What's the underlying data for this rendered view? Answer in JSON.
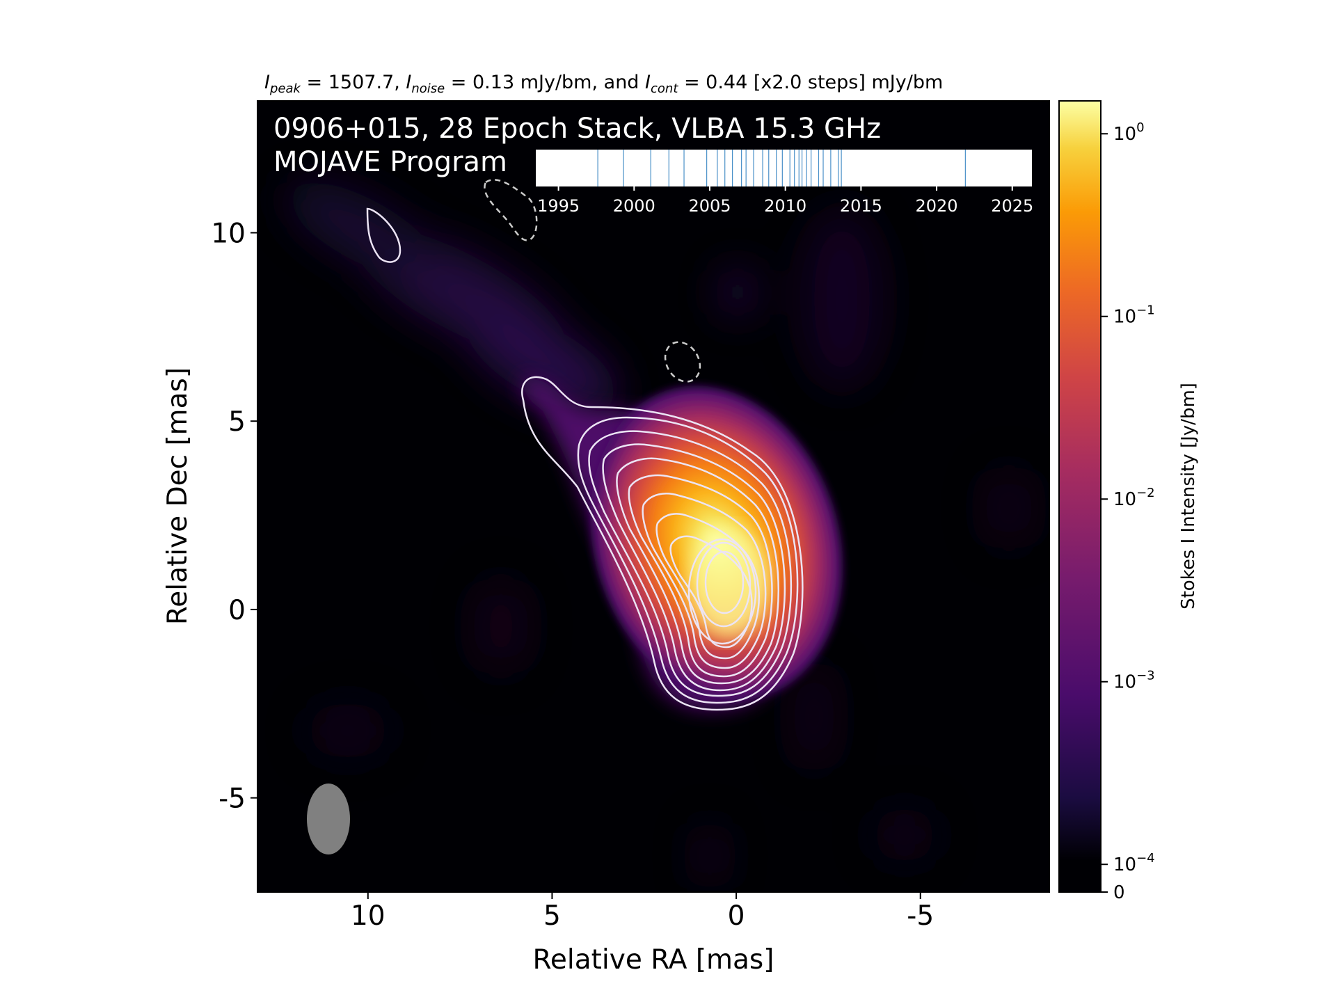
{
  "chart_data": {
    "type": "heatmap",
    "title_parts": {
      "peak_label": "I",
      "peak_sub": "peak",
      "peak_value": " = 1507.7, ",
      "noise_label": "I",
      "noise_sub": "noise",
      "noise_value": " = 0.13 mJy/bm, and ",
      "cont_label": "I",
      "cont_sub": "cont",
      "cont_value": " = 0.44 [x2.0 steps] mJy/bm"
    },
    "inset_text": {
      "line1": "0906+015, 28 Epoch Stack, VLBA 15.3 GHz",
      "line2": "MOJAVE Program"
    },
    "xlabel": "Relative RA [mas]",
    "ylabel": "Relative Dec [mas]",
    "xlim": [
      13.0,
      -8.5
    ],
    "ylim": [
      -7.5,
      13.5
    ],
    "x_ticks": [
      10,
      5,
      0,
      -5
    ],
    "x_tick_labels": [
      "10",
      "5",
      "0",
      "-5"
    ],
    "y_ticks": [
      10,
      5,
      0,
      -5
    ],
    "y_tick_labels": [
      "10",
      "5",
      "0",
      "-5"
    ],
    "colormap": "inferno",
    "colorbar": {
      "label": "Stokes I Intensity [Jy/bm]",
      "scale": "symlog",
      "ticks": [
        1,
        0.1,
        0.01,
        0.001,
        0.0001,
        0
      ],
      "tick_labels": [
        {
          "base": "10",
          "exp": "0"
        },
        {
          "base": "10",
          "exp": "−1"
        },
        {
          "base": "10",
          "exp": "−2"
        },
        {
          "base": "10",
          "exp": "−3"
        },
        {
          "base": "10",
          "exp": "−4"
        },
        {
          "base": "0",
          "exp": ""
        }
      ]
    },
    "peak_position": [
      0,
      0
    ],
    "contour_color": "#e8e0f0",
    "beam": {
      "x": 11.0,
      "y": -6.5,
      "major_mas": 2.0,
      "minor_mas": 1.2,
      "pa_deg": 0,
      "color": "#808080"
    },
    "negative_contours": [
      {
        "x": 6.0,
        "y": 10.3
      },
      {
        "x": 1.4,
        "y": 6.2
      }
    ],
    "epoch_timeline": {
      "xlim": [
        1993.5,
        2026.3
      ],
      "ticks": [
        1995,
        2000,
        2005,
        2010,
        2015,
        2020,
        2025
      ],
      "tick_labels": [
        "1995",
        "2000",
        "2005",
        "2010",
        "2015",
        "2020",
        "2025"
      ],
      "epochs": [
        1997.6,
        1999.3,
        2001.1,
        2002.3,
        2003.3,
        2004.8,
        2005.5,
        2006.0,
        2006.5,
        2007.1,
        2007.4,
        2007.9,
        2008.5,
        2008.9,
        2009.4,
        2009.8,
        2010.3,
        2010.6,
        2010.9,
        2011.1,
        2011.4,
        2011.7,
        2012.2,
        2012.5,
        2013.0,
        2013.5,
        2013.7,
        2021.9
      ],
      "line_color": "#4a90c8"
    }
  }
}
